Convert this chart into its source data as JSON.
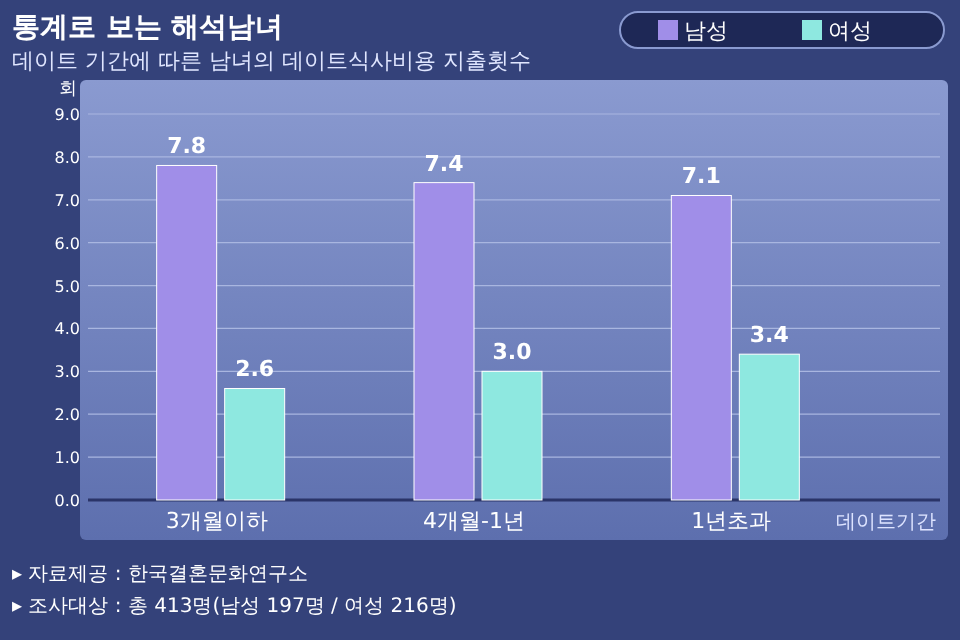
{
  "chart_data": {
    "type": "bar",
    "title": "통계로 보는 해석남녀",
    "subtitle": "데이트 기간에 따른 남녀의 데이트식사비용 지출횟수",
    "ylabel": "회",
    "xlabel": "데이트기간",
    "categories": [
      "3개월이하",
      "4개월-1년",
      "1년초과"
    ],
    "series": [
      {
        "name": "남성",
        "color": "#a08ee8",
        "values": [
          7.8,
          7.4,
          7.1
        ],
        "value_labels": [
          "7.8",
          "7.4",
          "7.1"
        ]
      },
      {
        "name": "여성",
        "color": "#8ee8e0",
        "values": [
          2.6,
          3.0,
          3.4
        ],
        "value_labels": [
          "2.6",
          "3.0",
          "3.4"
        ]
      }
    ],
    "ylim": [
      0,
      9
    ],
    "yticks": [
      {
        "value": 0,
        "label": "0.0"
      },
      {
        "value": 1,
        "label": "1.0"
      },
      {
        "value": 2,
        "label": "2.0"
      },
      {
        "value": 3,
        "label": "3.0"
      },
      {
        "value": 4,
        "label": "4.0"
      },
      {
        "value": 5,
        "label": "5.0"
      },
      {
        "value": 6,
        "label": "6.0"
      },
      {
        "value": 7,
        "label": "7.0"
      },
      {
        "value": 8,
        "label": "8.0"
      },
      {
        "value": 9,
        "label": "9.0"
      }
    ],
    "grid": "y",
    "legend": "top right",
    "annotations": [
      "▸ 자료제공 : 한국결혼문화연구소",
      "▸ 조사대상 : 총 413명(남성 197명 / 여성 216명)"
    ]
  }
}
